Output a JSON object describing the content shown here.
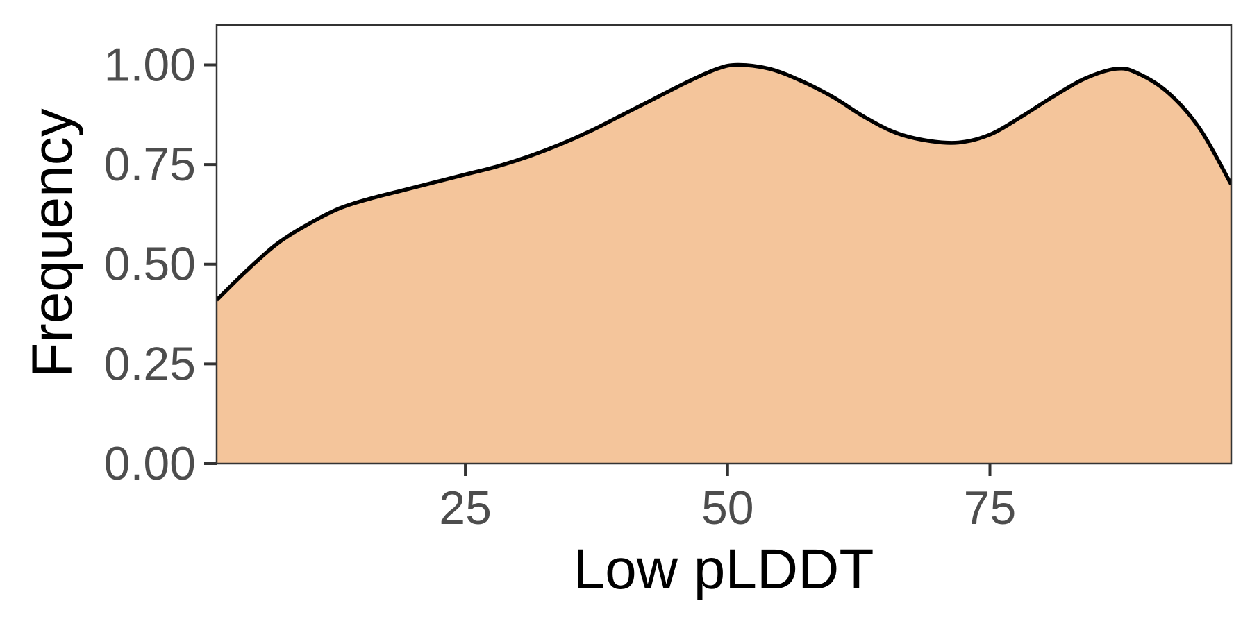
{
  "chart_data": {
    "type": "area",
    "title": "",
    "xlabel": "Low pLDDT",
    "ylabel": "Frequency",
    "xlim": [
      1.3,
      98
    ],
    "ylim": [
      0,
      1.1
    ],
    "x_ticks": [
      25,
      50,
      75
    ],
    "x_tick_labels": [
      "25",
      "50",
      "75"
    ],
    "y_ticks": [
      0,
      0.25,
      0.5,
      0.75,
      1.0
    ],
    "y_tick_labels": [
      "0.00",
      "0.25",
      "0.50",
      "0.75",
      "1.00"
    ],
    "grid": false,
    "fill_color": "#f4c59b",
    "line_color": "#000000",
    "series": [
      {
        "x": [
          1.3,
          4,
          7,
          10,
          13,
          16,
          19,
          22,
          25,
          28,
          31,
          34,
          37,
          40,
          43,
          46,
          49,
          51,
          54,
          57,
          60,
          63,
          66,
          69,
          72,
          75,
          78,
          81,
          84,
          87,
          89,
          92,
          95,
          98
        ],
        "y": [
          0.41,
          0.48,
          0.55,
          0.6,
          0.64,
          0.665,
          0.685,
          0.705,
          0.725,
          0.745,
          0.77,
          0.8,
          0.835,
          0.875,
          0.915,
          0.955,
          0.99,
          1.0,
          0.99,
          0.96,
          0.92,
          0.87,
          0.83,
          0.81,
          0.805,
          0.825,
          0.87,
          0.92,
          0.965,
          0.99,
          0.98,
          0.93,
          0.84,
          0.7
        ]
      }
    ]
  }
}
